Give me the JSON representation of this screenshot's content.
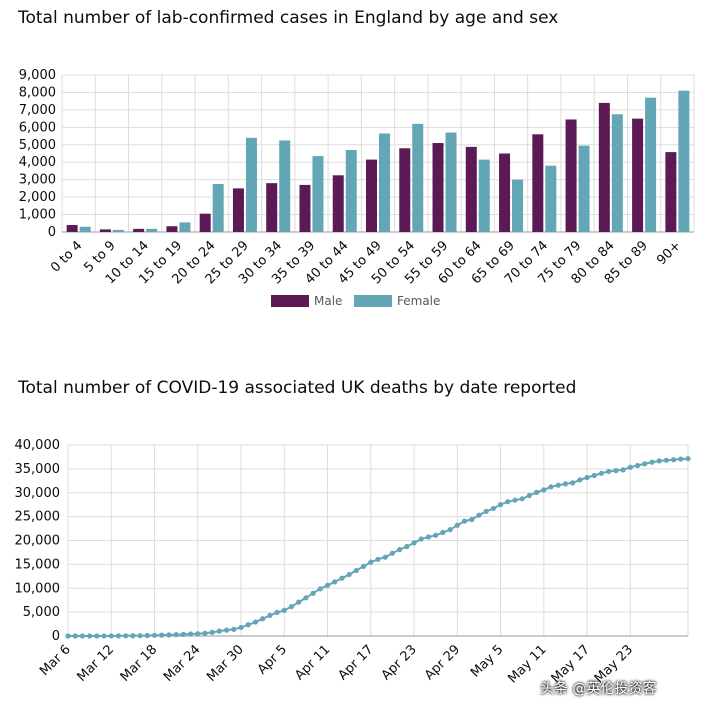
{
  "chart_data": [
    {
      "type": "bar",
      "title": "Total number of lab-confirmed cases in England by age and sex",
      "categories": [
        "0 to 4",
        "5 to 9",
        "10 to 14",
        "15 to 19",
        "20 to 24",
        "25 to 29",
        "30 to 34",
        "35 to 39",
        "40 to 44",
        "45 to 49",
        "50 to 54",
        "55 to 59",
        "60 to 64",
        "65 to 69",
        "70 to 74",
        "75 to 79",
        "80 to 84",
        "85 to 89",
        "90+"
      ],
      "series": [
        {
          "name": "Male",
          "color": "#5b1a55",
          "values": [
            400,
            150,
            180,
            330,
            1050,
            2500,
            2800,
            2700,
            3250,
            4150,
            4800,
            5100,
            4880,
            4500,
            5600,
            6450,
            7400,
            6500,
            4580
          ]
        },
        {
          "name": "Female",
          "color": "#63a6b5",
          "values": [
            300,
            120,
            180,
            550,
            2750,
            5400,
            5250,
            4350,
            4700,
            5650,
            6200,
            5700,
            4150,
            3000,
            3800,
            4950,
            6750,
            7700,
            8100
          ]
        }
      ],
      "ylim": [
        0,
        9000
      ],
      "yticks": [
        "0",
        "1,000",
        "2,000",
        "3,000",
        "4,000",
        "5,000",
        "6,000",
        "7,000",
        "8,000",
        "9,000"
      ],
      "grid": true,
      "legend": "bottom"
    },
    {
      "type": "line",
      "title": "Total number of COVID-19 associated UK deaths by date reported",
      "color": "#63a6b5",
      "x_labels": [
        "Mar 6",
        "Mar 12",
        "Mar 18",
        "Mar 24",
        "Mar 30",
        "Apr 5",
        "Apr 11",
        "Apr 17",
        "Apr 23",
        "Apr 29",
        "May 5",
        "May 11",
        "May 17",
        "May 23"
      ],
      "x_range": [
        "Mar 6",
        "May 26"
      ],
      "values": [
        1,
        1,
        2,
        3,
        4,
        8,
        10,
        21,
        35,
        55,
        71,
        104,
        144,
        177,
        233,
        281,
        335,
        422,
        465,
        578,
        759,
        1019,
        1228,
        1408,
        1789,
        2352,
        2921,
        3605,
        4313,
        4934,
        5373,
        6159,
        7097,
        7978,
        8958,
        9875,
        10612,
        11329,
        12107,
        12868,
        13729,
        14576,
        15464,
        16060,
        16509,
        17337,
        18100,
        18738,
        19506,
        20319,
        20732,
        21092,
        21678,
        22271,
        23190,
        24055,
        24393,
        25295,
        26097,
        26711,
        27510,
        28131,
        28446,
        28734,
        29427,
        30076,
        30615,
        31241,
        31587,
        31855,
        32065,
        32692,
        33186,
        33614,
        34078,
        34466,
        34636,
        34796,
        35341,
        35704,
        36042,
        36393,
        36675,
        36793,
        36914,
        37048,
        37130
      ],
      "ylim": [
        0,
        40000
      ],
      "yticks": [
        "0",
        "5,000",
        "10,000",
        "15,000",
        "20,000",
        "25,000",
        "30,000",
        "35,000",
        "40,000"
      ],
      "grid": true
    }
  ],
  "watermark": "头条 @英伦投资客"
}
